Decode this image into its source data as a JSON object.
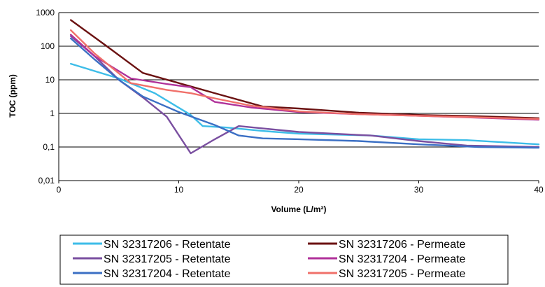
{
  "chart_data": {
    "type": "line",
    "title": "",
    "xlabel": "Volume  (L/m²)",
    "ylabel": "TOC (ppm)",
    "xlim": [
      0,
      40
    ],
    "ylim": [
      0.01,
      1000
    ],
    "y_scale": "log",
    "x_ticks": [
      0,
      10,
      20,
      30,
      40
    ],
    "x_tick_labels": [
      "0",
      "10",
      "20",
      "30",
      "40"
    ],
    "y_ticks": [
      0.01,
      0.1,
      1,
      10,
      100,
      1000
    ],
    "y_tick_labels": [
      "0,01",
      "0,1",
      "1",
      "10",
      "100",
      "1000"
    ],
    "grid": "horizontal",
    "legend_position": "bottom",
    "series": [
      {
        "name": "SN 32317206 - Retentate",
        "color": "#3dbde8",
        "x": [
          1,
          5,
          8,
          11,
          12,
          14,
          17,
          20,
          26,
          30,
          34,
          40
        ],
        "y": [
          30,
          11,
          4,
          0.9,
          0.42,
          0.38,
          0.3,
          0.25,
          0.22,
          0.17,
          0.16,
          0.12
        ]
      },
      {
        "name": "SN 32317206 - Permeate",
        "color": "#6b1212",
        "x": [
          1,
          4,
          7,
          10,
          13,
          17,
          20,
          25,
          30,
          35,
          40
        ],
        "y": [
          600,
          100,
          16,
          8,
          4,
          1.6,
          1.4,
          1.05,
          0.9,
          0.82,
          0.72
        ]
      },
      {
        "name": "SN 32317205 - Retentate",
        "color": "#7a4fa0",
        "x": [
          1,
          3,
          5,
          7,
          9,
          11,
          13,
          15,
          20,
          26,
          30,
          34,
          40
        ],
        "y": [
          200,
          50,
          10,
          3,
          0.8,
          0.065,
          0.17,
          0.42,
          0.28,
          0.22,
          0.15,
          0.11,
          0.1
        ]
      },
      {
        "name": "SN 32317204 - Permeate",
        "color": "#b0329a",
        "x": [
          1,
          3,
          6,
          9,
          11,
          13,
          16,
          20,
          25,
          30,
          40
        ],
        "y": [
          220,
          50,
          11,
          7.5,
          6,
          2.2,
          1.5,
          1.1,
          0.95,
          0.85,
          0.65
        ]
      },
      {
        "name": "SN 32317204 - Retentate",
        "color": "#3b6fc4",
        "x": [
          1,
          3,
          5,
          7,
          10,
          13,
          15,
          17,
          20,
          25,
          30,
          35,
          40
        ],
        "y": [
          170,
          40,
          10,
          3.2,
          1.1,
          0.45,
          0.22,
          0.18,
          0.17,
          0.15,
          0.12,
          0.1,
          0.095
        ]
      },
      {
        "name": "SN 32317205 - Permeate",
        "color": "#f0706a",
        "x": [
          1,
          3,
          6,
          9,
          11,
          13,
          16,
          20,
          25,
          30,
          40
        ],
        "y": [
          300,
          60,
          8,
          5,
          4,
          2.8,
          1.7,
          1.15,
          0.95,
          0.85,
          0.68
        ]
      }
    ]
  }
}
